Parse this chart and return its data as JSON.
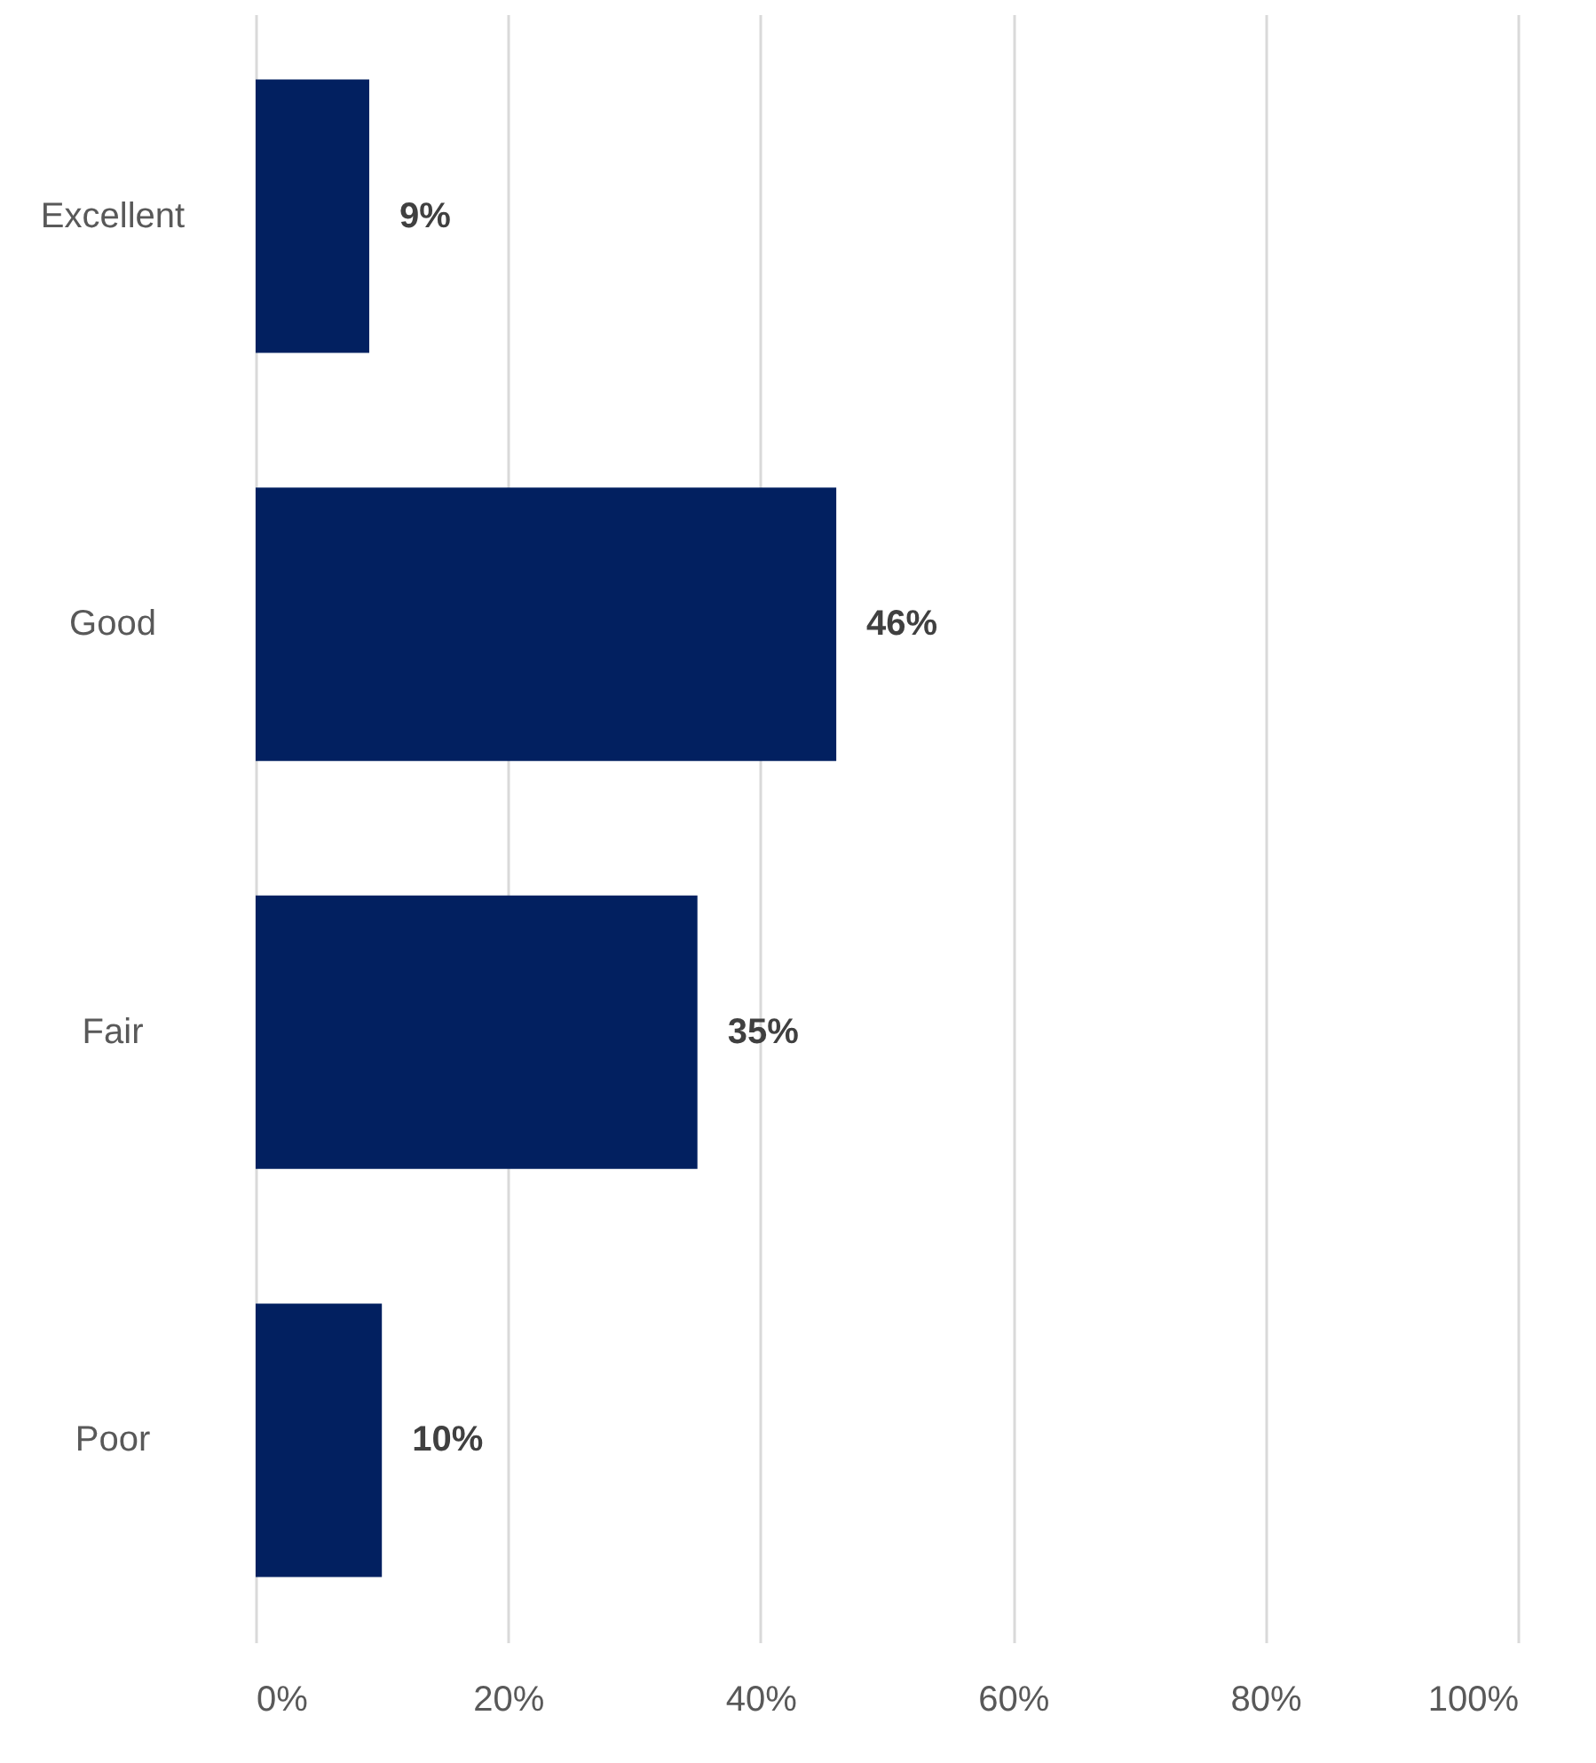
{
  "chart_data": {
    "type": "bar",
    "orientation": "horizontal",
    "categories": [
      "Excellent",
      "Good",
      "Fair",
      "Poor"
    ],
    "values": [
      9,
      46,
      35,
      10
    ],
    "value_labels": [
      "9%",
      "46%",
      "35%",
      "10%"
    ],
    "color": "#022060",
    "xlim": [
      0,
      100
    ],
    "xticks": [
      {
        "value": 0,
        "label": "0%"
      },
      {
        "value": 20,
        "label": "20%"
      },
      {
        "value": 40,
        "label": "40%"
      },
      {
        "value": 60,
        "label": "60%"
      },
      {
        "value": 80,
        "label": "80%"
      },
      {
        "value": 100,
        "label": "100%"
      }
    ],
    "grid": "x"
  }
}
